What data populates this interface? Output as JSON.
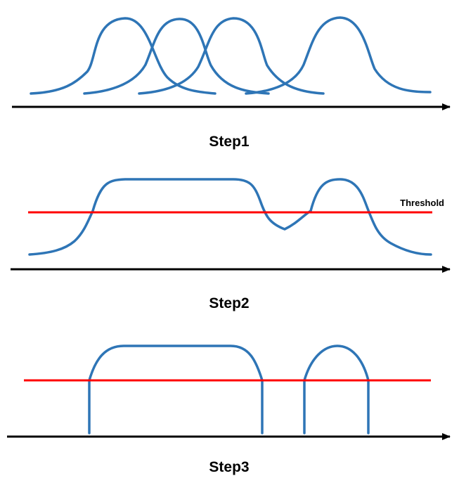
{
  "steps": [
    {
      "label": "Step1"
    },
    {
      "label": "Step2",
      "threshold_label": "Threshold"
    },
    {
      "label": "Step3"
    }
  ],
  "colors": {
    "curve": "#2e75b6",
    "threshold": "#ff0000",
    "axis": "#000000"
  }
}
